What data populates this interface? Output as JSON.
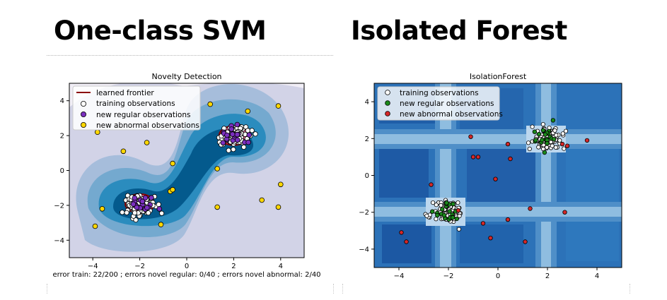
{
  "headings": {
    "left": "One-class SVM",
    "right": "Isolated Forest"
  },
  "chart_data": [
    {
      "type": "scatter",
      "title": "Novelty Detection",
      "xlabel": "error train: 22/200 ; errors novel regular: 0/40 ; errors novel abnormal: 2/40",
      "xlim": [
        -5,
        5
      ],
      "ylim": [
        -5,
        5
      ],
      "xticks": [
        -4,
        -2,
        0,
        2,
        4
      ],
      "yticks": [
        -4,
        -2,
        0,
        2,
        4
      ],
      "tick_labels": [
        "−4",
        "−2",
        "0",
        "2",
        "4"
      ],
      "legend": [
        "learned frontier",
        "training observations",
        "new regular observations",
        "new abnormal observations"
      ],
      "legend_position": "top-left",
      "colors": {
        "frontier": "#8b0000",
        "training": "#ffffff",
        "regular": "#7b2fbf",
        "abnormal": "#ffd700"
      },
      "clusters": [
        {
          "name": "cluster-a",
          "center": [
            -2,
            -2
          ],
          "spread": 0.3
        },
        {
          "name": "cluster-b",
          "center": [
            2,
            2
          ],
          "spread": 0.3
        }
      ],
      "frontier_ellipses": [
        {
          "center": [
            -2,
            -1.9
          ],
          "rx": 0.62,
          "ry": 0.55
        },
        {
          "center": [
            2,
            2.0
          ],
          "rx": 0.62,
          "ry": 0.55
        }
      ],
      "series": [
        {
          "name": "new abnormal observations",
          "x": [
            -3.8,
            -2.7,
            -1.7,
            -0.6,
            -0.7,
            -1.1,
            -3.6,
            -3.9,
            -0.6,
            1.0,
            1.3,
            1.3,
            2.6,
            3.9,
            3.2,
            3.9,
            4.0
          ],
          "y": [
            2.2,
            1.1,
            1.6,
            0.4,
            -1.2,
            -3.1,
            -2.2,
            -3.2,
            -1.1,
            3.8,
            0.1,
            -2.1,
            3.4,
            3.7,
            -1.7,
            -2.1,
            -0.8
          ]
        }
      ]
    },
    {
      "type": "scatter",
      "title": "IsolationForest",
      "xlim": [
        -5,
        5
      ],
      "ylim": [
        -5,
        5
      ],
      "xticks": [
        -4,
        -2,
        0,
        2,
        4
      ],
      "yticks": [
        -4,
        -2,
        0,
        2,
        4
      ],
      "tick_labels": [
        "−4",
        "−2",
        "0",
        "2",
        "4"
      ],
      "legend": [
        "training observations",
        "new regular observations",
        "new abnormal observations"
      ],
      "legend_position": "top-left",
      "colors": {
        "training": "#ffffff",
        "regular": "#1a8a1a",
        "abnormal": "#d62728"
      },
      "clusters": [
        {
          "name": "cluster-a",
          "center": [
            -2,
            -2
          ],
          "spread": 0.3
        },
        {
          "name": "cluster-b",
          "center": [
            2,
            2
          ],
          "spread": 0.3
        }
      ],
      "series": [
        {
          "name": "new abnormal observations",
          "x": [
            -3.9,
            -3.7,
            -2.7,
            -1.6,
            -1.1,
            -1.0,
            -0.8,
            -0.6,
            -0.3,
            -0.1,
            0.4,
            0.5,
            0.4,
            1.1,
            1.3,
            2.6,
            2.8,
            3.6,
            2.7
          ],
          "y": [
            -3.1,
            -3.6,
            -0.5,
            -1.9,
            2.1,
            1.0,
            1.0,
            -2.6,
            -3.4,
            -0.2,
            1.7,
            0.9,
            -2.4,
            -3.6,
            -1.8,
            1.7,
            1.6,
            1.9,
            -2.0
          ]
        }
      ]
    }
  ]
}
